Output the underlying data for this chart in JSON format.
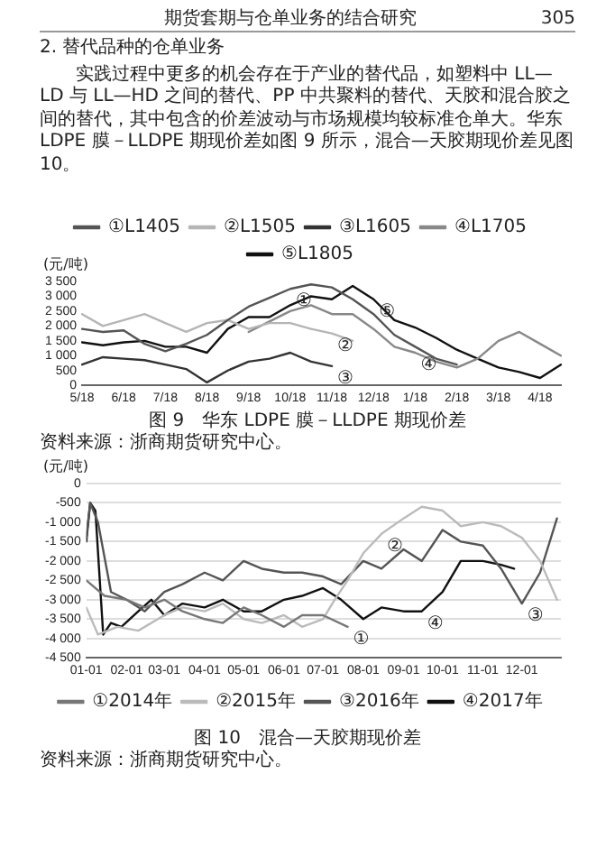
{
  "chart_data": [
    {
      "type": "line",
      "title": "图 9　华东 LDPE 膜－LLDPE 期现价差",
      "ylabel": "(元/吨)",
      "legend": "top",
      "grid": false,
      "marker": "none",
      "line_style": "solid",
      "annotations": [
        "期货套期与仓单业务的结合研究",
        "305",
        "2. 替代品种的仓单业务",
        "实践过程中更多的机会存在于产业的替代品，如塑料中 LL—LD 与 LL—HD 之间的替代、PP 中共聚料的替代、天胶和混合胶之间的替代，其中包含的价差波动与市场规模均较标准仓单大。华东 LDPE 膜－LLDPE 期现价差如图 9 所示，混合—天胶期现价差见图 10。",
        {
          "text": "①",
          "x": "10/18",
          "y": 3250
        },
        {
          "text": "⑤",
          "x": "12/18",
          "y": 2900
        },
        {
          "text": "②",
          "x": "11/18",
          "y": 1750
        },
        {
          "text": "④",
          "x": "1/18",
          "y": 1100
        },
        {
          "text": "③",
          "x": "11/18",
          "y": 650
        },
        "资料来源：浙商期货研究中心。"
      ],
      "categories": [
        "5/18",
        null,
        "6/18",
        null,
        "7/18",
        null,
        "8/18",
        null,
        "9/18",
        null,
        "10/18",
        null,
        "11/18",
        null,
        "12/18",
        null,
        "1/18",
        null,
        "2/18",
        null,
        "3/18",
        null,
        "4/18",
        null
      ],
      "ylim": [
        0,
        3500
      ],
      "yticks": [
        0,
        500,
        {
          "value": 1000,
          "label": "1 000"
        },
        {
          "value": 1500,
          "label": "1 500"
        },
        {
          "value": 2000,
          "label": "2 000"
        },
        {
          "value": 2500,
          "label": "2 500"
        },
        {
          "value": 3000,
          "label": "3 000"
        },
        {
          "value": 3500,
          "label": "3 500"
        }
      ],
      "series": [
        {
          "name": "①L1405",
          "color": "#555555",
          "values": [
            1900,
            1800,
            1850,
            1400,
            1150,
            1400,
            1700,
            2200,
            2650,
            2950,
            3250,
            3400,
            3300,
            2900,
            2400,
            1700,
            1300,
            900,
            700,
            null,
            null,
            null,
            null,
            null
          ]
        },
        {
          "name": "②L1505",
          "color": "#b5b5b5",
          "values": [
            2400,
            2000,
            2200,
            2400,
            2100,
            1800,
            2100,
            2200,
            1900,
            2100,
            2100,
            1900,
            1750,
            1500,
            null,
            null,
            null,
            null,
            null,
            null,
            null,
            null,
            null,
            null
          ]
        },
        {
          "name": "③L1605",
          "color": "#333333",
          "values": [
            700,
            950,
            900,
            850,
            700,
            550,
            100,
            500,
            800,
            900,
            1100,
            800,
            650,
            null,
            null,
            null,
            null,
            null,
            null,
            null,
            null,
            null,
            null,
            null
          ]
        },
        {
          "name": "④L1705",
          "color": "#888888",
          "values": [
            null,
            null,
            null,
            null,
            null,
            null,
            null,
            null,
            1800,
            2150,
            2500,
            2700,
            2400,
            2400,
            1900,
            1300,
            1100,
            800,
            600,
            900,
            1500,
            1800,
            1400,
            1000
          ]
        },
        {
          "name": "⑤L1805",
          "color": "#111111",
          "values": [
            1450,
            1350,
            1450,
            1500,
            1300,
            1300,
            1100,
            1900,
            2300,
            2300,
            2700,
            3000,
            2900,
            3350,
            2900,
            2200,
            1950,
            1600,
            1200,
            900,
            600,
            450,
            250,
            700
          ]
        }
      ]
    },
    {
      "type": "line",
      "title": "图 10　混合—天胶期现价差",
      "ylabel": "(元/吨)",
      "legend": "bottom",
      "grid": "y",
      "marker": "none",
      "line_style": "solid",
      "annotations": [
        {
          "text": "②",
          "x": "--08-15",
          "y": -1300
        },
        {
          "text": "①",
          "x": "--07-20",
          "y": -3700
        },
        {
          "text": "④",
          "x": "--09-15",
          "y": -3300
        },
        {
          "text": "③",
          "x": "--12-01",
          "y": -3100
        },
        "资料来源：浙商期货研究中心。"
      ],
      "xlim": [
        "--01-01",
        "--12-31"
      ],
      "xticks": [
        {
          "value": "--01-01",
          "label": "01-01"
        },
        {
          "value": "--02-01",
          "label": "02-01"
        },
        {
          "value": "--03-01",
          "label": "03-01"
        },
        {
          "value": "--04-01",
          "label": "04-01"
        },
        {
          "value": "--05-01",
          "label": "05-01"
        },
        {
          "value": "--06-01",
          "label": "06-01"
        },
        {
          "value": "--07-01",
          "label": "07-01"
        },
        {
          "value": "--08-01",
          "label": "08-01"
        },
        {
          "value": "--09-01",
          "label": "09-01"
        },
        {
          "value": "--10-01",
          "label": "10-01"
        },
        {
          "value": "--11-01",
          "label": "11-01"
        },
        {
          "value": "--12-01",
          "label": "12-01"
        }
      ],
      "ylim": [
        -4500,
        0
      ],
      "yticks": [
        {
          "value": -4500,
          "label": "-4 500"
        },
        {
          "value": -4000,
          "label": "-4 000"
        },
        {
          "value": -3500,
          "label": "-3 500"
        },
        {
          "value": -3000,
          "label": "-3 000"
        },
        {
          "value": -2500,
          "label": "-2 500"
        },
        {
          "value": -2000,
          "label": "-2 000"
        },
        {
          "value": -1500,
          "label": "-1 500"
        },
        {
          "value": -1000,
          "label": "-1 000"
        },
        -500,
        0
      ],
      "series": [
        {
          "name": "①2014年",
          "color": "#777777",
          "x": [
            "--01-01",
            "--01-15",
            "--02-01",
            "--02-15",
            "--03-01",
            "--03-15",
            "--04-01",
            "--04-15",
            "--05-01",
            "--05-15",
            "--06-01",
            "--06-15",
            "--07-01",
            "--07-20"
          ],
          "values": [
            -2500,
            -2900,
            -3000,
            -3200,
            -3000,
            -3300,
            -3500,
            -3600,
            -3200,
            -3400,
            -3700,
            -3400,
            -3400,
            -3700
          ]
        },
        {
          "name": "②2015年",
          "color": "#bbbbbb",
          "x": [
            "--01-01",
            "--01-10",
            "--01-25",
            "--02-10",
            "--03-01",
            "--03-15",
            "--04-01",
            "--04-15",
            "--05-01",
            "--05-15",
            "--06-01",
            "--06-15",
            "--07-01",
            "--07-10",
            "--07-20",
            "--08-01",
            "--08-15",
            "--09-01",
            "--09-15",
            "--10-01",
            "--10-15",
            "--11-01",
            "--11-15",
            "--12-01",
            "--12-15",
            "--12-28"
          ],
          "values": [
            -3200,
            -3900,
            -3700,
            -3800,
            -3400,
            -3200,
            -3300,
            -3100,
            -3500,
            -3600,
            -3400,
            -3700,
            -3500,
            -3000,
            -2500,
            -1800,
            -1300,
            -900,
            -600,
            -700,
            -1100,
            -1000,
            -1100,
            -1400,
            -2000,
            -3000
          ]
        },
        {
          "name": "③2016年",
          "color": "#555555",
          "x": [
            "--01-01",
            "--01-04",
            "--01-10",
            "--01-20",
            "--02-01",
            "--02-15",
            "--03-01",
            "--03-15",
            "--04-01",
            "--04-15",
            "--05-01",
            "--05-15",
            "--06-01",
            "--06-15",
            "--07-01",
            "--07-15",
            "--08-01",
            "--08-15",
            "--09-01",
            "--09-15",
            "--10-01",
            "--10-15",
            "--11-01",
            "--11-15",
            "--12-01",
            "--12-15",
            "--12-28"
          ],
          "values": [
            -1400,
            -500,
            -1000,
            -2800,
            -3000,
            -3300,
            -2800,
            -2600,
            -2300,
            -2500,
            -2000,
            -2200,
            -2300,
            -2300,
            -2400,
            -2600,
            -2000,
            -2200,
            -1700,
            -2000,
            -1200,
            -1500,
            -1600,
            -2200,
            -3100,
            -2300,
            -900
          ]
        },
        {
          "name": "④2017年",
          "color": "#111111",
          "x": [
            "--01-01",
            "--01-04",
            "--01-08",
            "--01-14",
            "--01-20",
            "--01-28",
            "--02-10",
            "--02-20",
            "--03-01",
            "--03-15",
            "--04-01",
            "--04-15",
            "--05-01",
            "--05-15",
            "--06-01",
            "--06-15",
            "--07-01",
            "--07-15",
            "--08-01",
            "--08-15",
            "--09-01",
            "--09-15",
            "--10-01",
            "--10-15",
            "--11-01",
            "--11-15",
            "--11-25"
          ],
          "values": [
            -1500,
            -500,
            -700,
            -3900,
            -3600,
            -3700,
            -3300,
            -3000,
            -3400,
            -3100,
            -3200,
            -3000,
            -3300,
            -3300,
            -3000,
            -2900,
            -2700,
            -3000,
            -3500,
            -3200,
            -3300,
            -3300,
            -2800,
            -2000,
            -2000,
            -2100,
            -2200
          ]
        }
      ]
    }
  ]
}
